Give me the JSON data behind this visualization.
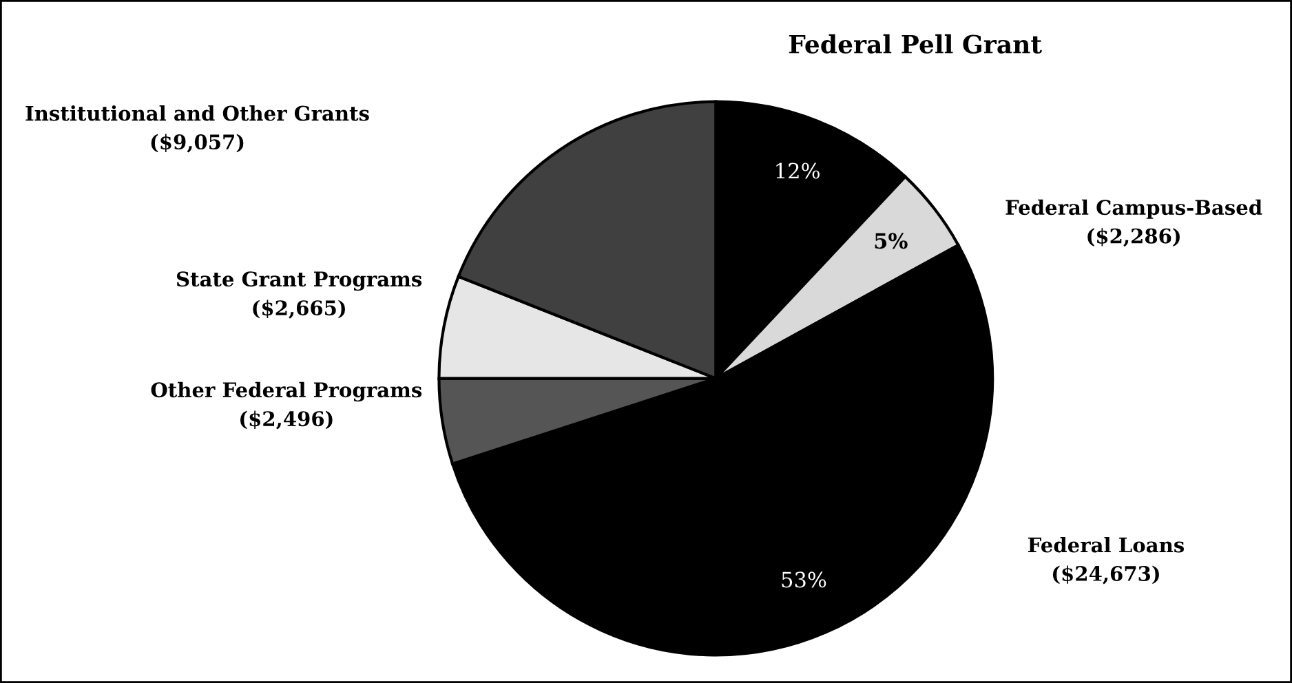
{
  "chart_data": {
    "type": "pie",
    "categories": [
      "Federal Pell Grant",
      "Federal Campus-Based\n($2,286)",
      "Federal Loans\n($24,673)",
      "Other Federal Programs\n($2,496)",
      "State Grant Programs\n($2,665)",
      "Institutional and Other Grants\n($9,057)"
    ],
    "values": [
      12,
      5,
      53,
      5,
      6,
      19
    ],
    "colors": [
      "#000000",
      "#d9d9d9",
      "#000000",
      "#555555",
      "#e6e6e6",
      "#404040"
    ],
    "value_labels": [
      "12%",
      "5%",
      "53%",
      null,
      null,
      null
    ],
    "legend": false
  }
}
